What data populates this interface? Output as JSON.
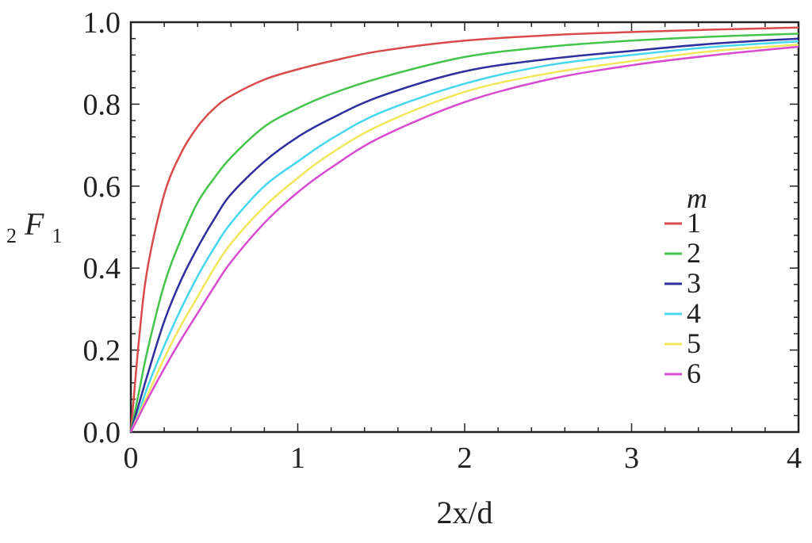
{
  "chart_data": {
    "type": "line",
    "xlabel": "2x/d",
    "ylabel": {
      "prefix": "2",
      "main": "F",
      "sub": "1"
    },
    "xlim": [
      0,
      4
    ],
    "ylim": [
      0,
      1
    ],
    "x_ticks": [
      "0",
      "1",
      "2",
      "3",
      "4"
    ],
    "y_ticks": [
      "0.0",
      "0.2",
      "0.4",
      "0.6",
      "0.8",
      "1.0"
    ],
    "grid": false,
    "legend": {
      "title": "m",
      "placement": "right"
    },
    "x": [
      0,
      0.05,
      0.1,
      0.2,
      0.3,
      0.4,
      0.5,
      0.6,
      0.8,
      1.0,
      1.2,
      1.5,
      2.0,
      2.5,
      3.0,
      3.5,
      4.0
    ],
    "series": [
      {
        "name": "1",
        "color": "#d94b4b",
        "values": [
          0,
          0.23,
          0.4,
          0.58,
          0.68,
          0.745,
          0.79,
          0.82,
          0.86,
          0.885,
          0.905,
          0.93,
          0.955,
          0.968,
          0.976,
          0.982,
          0.987
        ]
      },
      {
        "name": "2",
        "color": "#44c44a",
        "values": [
          0,
          0.1,
          0.2,
          0.36,
          0.47,
          0.56,
          0.62,
          0.67,
          0.745,
          0.79,
          0.825,
          0.865,
          0.915,
          0.94,
          0.955,
          0.965,
          0.972
        ]
      },
      {
        "name": "3",
        "color": "#2e2e9e",
        "values": [
          0,
          0.07,
          0.14,
          0.27,
          0.37,
          0.45,
          0.52,
          0.58,
          0.66,
          0.72,
          0.765,
          0.82,
          0.88,
          0.91,
          0.93,
          0.948,
          0.96
        ]
      },
      {
        "name": "4",
        "color": "#47d7ee",
        "values": [
          0,
          0.05,
          0.11,
          0.21,
          0.3,
          0.38,
          0.45,
          0.51,
          0.6,
          0.66,
          0.715,
          0.78,
          0.85,
          0.895,
          0.92,
          0.94,
          0.953
        ]
      },
      {
        "name": "5",
        "color": "#f2e65a",
        "values": [
          0,
          0.045,
          0.09,
          0.18,
          0.26,
          0.33,
          0.4,
          0.46,
          0.55,
          0.62,
          0.68,
          0.75,
          0.83,
          0.875,
          0.905,
          0.93,
          0.945
        ]
      },
      {
        "name": "6",
        "color": "#d84bd0",
        "values": [
          0,
          0.04,
          0.08,
          0.155,
          0.225,
          0.29,
          0.355,
          0.415,
          0.51,
          0.585,
          0.645,
          0.72,
          0.805,
          0.86,
          0.895,
          0.92,
          0.94
        ]
      }
    ]
  }
}
